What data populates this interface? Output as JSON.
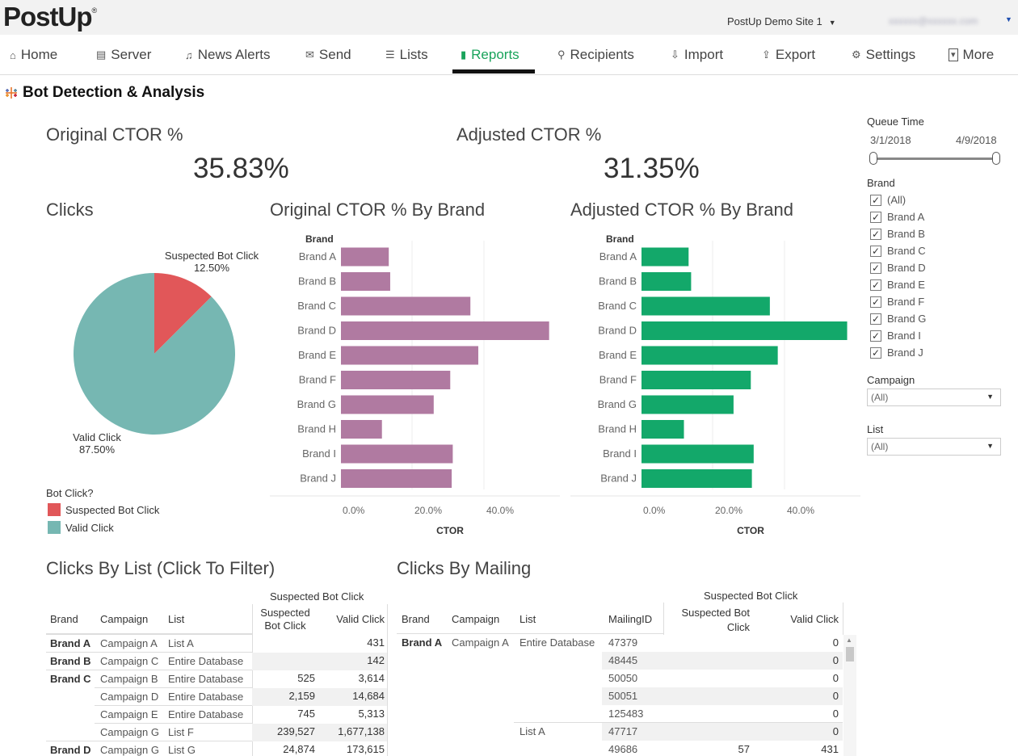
{
  "header": {
    "logo": "PostUp",
    "logo_mark": "®",
    "site": "PostUp Demo Site 1",
    "user": "xxxxxx@xxxxxx.com"
  },
  "nav": [
    {
      "label": "Home",
      "icon": "home-icon"
    },
    {
      "label": "Server",
      "icon": "server-icon"
    },
    {
      "label": "News Alerts",
      "icon": "bell-icon"
    },
    {
      "label": "Send",
      "icon": "envelope-icon"
    },
    {
      "label": "Lists",
      "icon": "list-icon"
    },
    {
      "label": "Reports",
      "icon": "bar-chart-icon",
      "active": true
    },
    {
      "label": "Recipients",
      "icon": "search-icon"
    },
    {
      "label": "Import",
      "icon": "import-icon"
    },
    {
      "label": "Export",
      "icon": "export-icon"
    },
    {
      "label": "Settings",
      "icon": "gear-icon"
    },
    {
      "label": "More",
      "icon": "dropdown-box-icon"
    }
  ],
  "page": {
    "title": "Bot Detection & Analysis"
  },
  "kpis": {
    "original": {
      "title": "Original CTOR %",
      "value": "35.83%"
    },
    "adjusted": {
      "title": "Adjusted CTOR %",
      "value": "31.35%"
    }
  },
  "clicks": {
    "title": "Clicks",
    "legend_title": "Bot Click?",
    "slices": [
      {
        "label": "Suspected Bot Click",
        "pct": "12.50%",
        "value": 12.5,
        "color": "#e15759"
      },
      {
        "label": "Valid Click",
        "pct": "87.50%",
        "value": 87.5,
        "color": "#76b7b2"
      }
    ]
  },
  "chart_data": [
    {
      "type": "bar",
      "title": "Original CTOR % By Brand",
      "ylabel": "Brand",
      "xlabel": "CTOR",
      "categories": [
        "Brand A",
        "Brand B",
        "Brand C",
        "Brand D",
        "Brand E",
        "Brand F",
        "Brand G",
        "Brand H",
        "Brand I",
        "Brand J"
      ],
      "values": [
        13.3,
        13.7,
        36.0,
        57.9,
        38.2,
        30.4,
        25.8,
        11.4,
        31.1,
        30.8
      ],
      "xticks": [
        "0.0%",
        "20.0%",
        "40.0%"
      ],
      "xlim": [
        0,
        60
      ],
      "color": "#b07aa1"
    },
    {
      "type": "bar",
      "title": "Adjusted CTOR % By Brand",
      "ylabel": "Brand",
      "xlabel": "CTOR",
      "categories": [
        "Brand A",
        "Brand B",
        "Brand C",
        "Brand D",
        "Brand E",
        "Brand F",
        "Brand G",
        "Brand H",
        "Brand I",
        "Brand J"
      ],
      "values": [
        13.1,
        13.8,
        35.7,
        57.2,
        37.9,
        30.4,
        25.6,
        11.8,
        31.2,
        30.7
      ],
      "xticks": [
        "0.0%",
        "20.0%",
        "40.0%"
      ],
      "xlim": [
        0,
        60
      ],
      "color": "#13a86a"
    },
    {
      "type": "pie",
      "title": "Clicks",
      "categories": [
        "Suspected Bot Click",
        "Valid Click"
      ],
      "values": [
        12.5,
        87.5
      ]
    }
  ],
  "filters": {
    "queue_time": {
      "title": "Queue Time",
      "start": "3/1/2018",
      "end": "4/9/2018"
    },
    "brand": {
      "title": "Brand",
      "options": [
        "(All)",
        "Brand A",
        "Brand B",
        "Brand C",
        "Brand D",
        "Brand E",
        "Brand F",
        "Brand G",
        "Brand I",
        "Brand J"
      ]
    },
    "campaign": {
      "title": "Campaign",
      "value": "(All)"
    },
    "list": {
      "title": "List",
      "value": "(All)"
    }
  },
  "clicks_by_list": {
    "title": "Clicks By List (Click To Filter)",
    "group_header": "Suspected Bot Click",
    "headers": [
      "Brand",
      "Campaign",
      "List",
      "Suspected\nBot Click",
      "Valid Click"
    ],
    "rows": [
      {
        "brand": "Brand A",
        "campaign": "Campaign A",
        "list": "List A",
        "bot": "",
        "valid": "431"
      },
      {
        "brand": "Brand B",
        "campaign": "Campaign C",
        "list": "Entire Database",
        "bot": "",
        "valid": "142"
      },
      {
        "brand": "Brand C",
        "campaign": "Campaign B",
        "list": "Entire Database",
        "bot": "525",
        "valid": "3,614"
      },
      {
        "brand": "",
        "campaign": "Campaign D",
        "list": "Entire Database",
        "bot": "2,159",
        "valid": "14,684"
      },
      {
        "brand": "",
        "campaign": "Campaign E",
        "list": "Entire Database",
        "bot": "745",
        "valid": "5,313"
      },
      {
        "brand": "",
        "campaign": "Campaign G",
        "list": "List F",
        "bot": "239,527",
        "valid": "1,677,138"
      },
      {
        "brand": "Brand D",
        "campaign": "Campaign G",
        "list": "List G",
        "bot": "24,874",
        "valid": "173,615"
      }
    ]
  },
  "clicks_by_mailing": {
    "title": "Clicks By Mailing",
    "group_header": "Suspected Bot Click",
    "headers": [
      "Brand",
      "Campaign",
      "List",
      "MailingID",
      "Suspected Bot\nClick",
      "Valid Click"
    ],
    "rows": [
      {
        "brand": "Brand A",
        "campaign": "Campaign A",
        "list": "Entire Database",
        "mailing": "47379",
        "bot": "",
        "valid": "0"
      },
      {
        "brand": "",
        "campaign": "",
        "list": "",
        "mailing": "48445",
        "bot": "",
        "valid": "0"
      },
      {
        "brand": "",
        "campaign": "",
        "list": "",
        "mailing": "50050",
        "bot": "",
        "valid": "0"
      },
      {
        "brand": "",
        "campaign": "",
        "list": "",
        "mailing": "50051",
        "bot": "",
        "valid": "0"
      },
      {
        "brand": "",
        "campaign": "",
        "list": "",
        "mailing": "125483",
        "bot": "",
        "valid": "0"
      },
      {
        "brand": "",
        "campaign": "",
        "list": "List A",
        "mailing": "47717",
        "bot": "",
        "valid": "0"
      },
      {
        "brand": "",
        "campaign": "",
        "list": "",
        "mailing": "49686",
        "bot": "57",
        "valid": "431"
      }
    ]
  }
}
